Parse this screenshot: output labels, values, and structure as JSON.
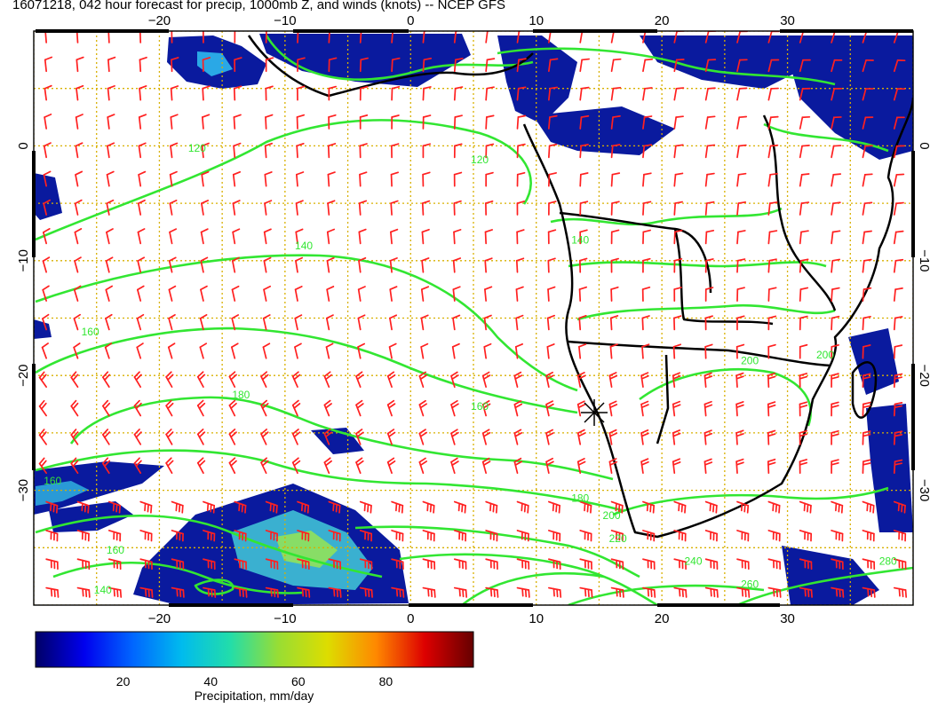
{
  "title": "16071218, 042 hour forecast for precip, 1000mb Z, and winds (knots) -- NCEP GFS",
  "map": {
    "lon_range": [
      -30,
      40
    ],
    "lat_range": [
      -40,
      10
    ],
    "lon_ticks": [
      -20,
      -10,
      0,
      10,
      20,
      30
    ],
    "lat_ticks": [
      0,
      -10,
      -20,
      -30
    ],
    "lon_tick_labels": [
      "−20",
      "−10",
      "0",
      "10",
      "20",
      "30"
    ],
    "lat_tick_labels": [
      "0",
      "−10",
      "−20",
      "−30"
    ],
    "grid": "dotted",
    "grid_color": "#d8b000",
    "wind_barb_color": "#ff2020",
    "contour_color": "#32e632",
    "coast_color": "#000000",
    "contour_labels": [
      {
        "text": "120",
        "lon": 5.5,
        "lat": -1.5
      },
      {
        "text": "120",
        "lon": -17,
        "lat": -0.5
      },
      {
        "text": "140",
        "lon": -8.5,
        "lat": -9.0
      },
      {
        "text": "140",
        "lon": 13.5,
        "lat": -8.5
      },
      {
        "text": "160",
        "lon": -25.5,
        "lat": -16.5
      },
      {
        "text": "180",
        "lon": -13.5,
        "lat": -22.0
      },
      {
        "text": "160",
        "lon": 5.5,
        "lat": -23.0
      },
      {
        "text": "180",
        "lon": 13.5,
        "lat": -31.0
      },
      {
        "text": "160",
        "lon": -28.5,
        "lat": -29.5
      },
      {
        "text": "160",
        "lon": -23.5,
        "lat": -35.5
      },
      {
        "text": "140",
        "lon": -24.5,
        "lat": -39.0
      },
      {
        "text": "200",
        "lon": 16.0,
        "lat": -32.5
      },
      {
        "text": "220",
        "lon": 16.5,
        "lat": -34.5
      },
      {
        "text": "240",
        "lon": 22.5,
        "lat": -36.5
      },
      {
        "text": "260",
        "lon": 27.0,
        "lat": -38.5
      },
      {
        "text": "280",
        "lon": 38.0,
        "lat": -36.5
      },
      {
        "text": "200",
        "lon": 27.0,
        "lat": -19.0
      },
      {
        "text": "200",
        "lon": 33.0,
        "lat": -18.5
      }
    ]
  },
  "colorbar": {
    "label": "Precipitation, mm/day",
    "min": 0,
    "max": 100,
    "ticks": [
      20,
      40,
      60,
      80
    ],
    "tick_labels": [
      "20",
      "40",
      "60",
      "80"
    ],
    "colors": [
      "#000066",
      "#0000ee",
      "#0066ff",
      "#00bbee",
      "#22ddaa",
      "#99dd33",
      "#dddd00",
      "#ff8800",
      "#dd0000",
      "#660000"
    ]
  }
}
